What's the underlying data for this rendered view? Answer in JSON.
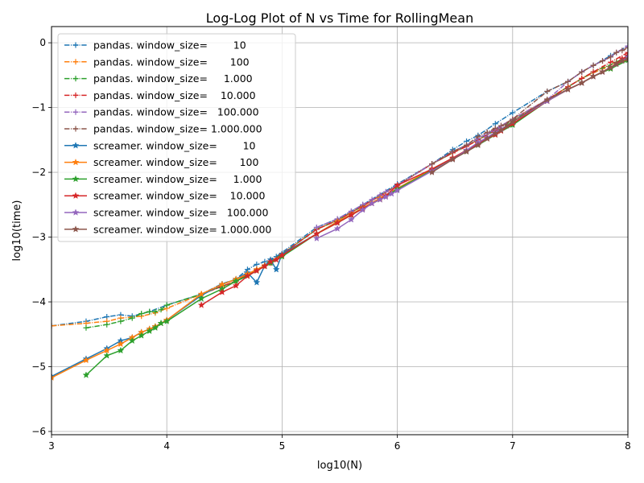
{
  "chart_data": {
    "type": "line",
    "title": "Log-Log Plot of N vs Time for RollingMean",
    "xlabel": "log10(N)",
    "ylabel": "log10(time)",
    "xlim": [
      3,
      8
    ],
    "ylim": [
      -6.05,
      0.25
    ],
    "xticks": [
      "3",
      "4",
      "5",
      "6",
      "7",
      "8"
    ],
    "yticks": [
      "0",
      "−1",
      "−2",
      "−3",
      "−4",
      "−5",
      "−6"
    ],
    "grid": true,
    "legend_position": "upper left",
    "series": [
      {
        "name": "pandas. window_size=        10",
        "color": "#1f77b4",
        "style": "dashdot",
        "marker": "plus",
        "x": [
          3.0,
          3.3,
          3.48,
          3.6,
          3.7,
          3.85,
          4.0,
          4.3,
          4.48,
          4.6,
          4.7,
          4.78,
          4.85,
          4.95,
          5.3,
          5.48,
          5.7,
          6.0,
          6.3,
          6.48,
          6.6,
          6.7,
          6.85,
          7.0,
          7.3,
          7.48,
          7.6,
          7.7,
          7.85,
          8.0
        ],
        "y": [
          -4.37,
          -4.3,
          -4.23,
          -4.2,
          -4.22,
          -4.15,
          -4.05,
          -3.88,
          -3.72,
          -3.65,
          -3.5,
          -3.42,
          -3.38,
          -3.3,
          -2.85,
          -2.72,
          -2.5,
          -2.18,
          -1.87,
          -1.65,
          -1.52,
          -1.43,
          -1.25,
          -1.08,
          -0.75,
          -0.6,
          -0.45,
          -0.35,
          -0.2,
          -0.05
        ]
      },
      {
        "name": "pandas. window_size=       100",
        "color": "#ff7f0e",
        "style": "dashdot",
        "marker": "plus",
        "x": [
          3.0,
          3.3,
          3.48,
          3.6,
          3.78,
          3.9,
          4.0,
          4.3,
          4.48,
          4.6,
          4.7,
          4.85,
          5.0,
          5.3,
          5.48,
          5.7,
          6.0,
          6.3,
          6.48,
          6.7,
          6.85,
          7.0,
          7.3,
          7.48,
          7.6,
          7.78,
          7.9,
          8.0
        ],
        "y": [
          -4.37,
          -4.33,
          -4.3,
          -4.25,
          -4.22,
          -4.17,
          -4.1,
          -3.88,
          -3.76,
          -3.68,
          -3.58,
          -3.44,
          -3.26,
          -2.88,
          -2.74,
          -2.52,
          -2.2,
          -1.87,
          -1.7,
          -1.5,
          -1.35,
          -1.18,
          -0.88,
          -0.68,
          -0.55,
          -0.4,
          -0.3,
          -0.2
        ]
      },
      {
        "name": "pandas. window_size=     1.000",
        "color": "#2ca02c",
        "style": "dashdot",
        "marker": "plus",
        "x": [
          3.3,
          3.48,
          3.6,
          3.7,
          3.78,
          3.85,
          3.9,
          3.95,
          4.0,
          4.3,
          4.48,
          4.6,
          4.7,
          4.85,
          5.0,
          5.3,
          5.48,
          5.7,
          6.0,
          6.3,
          6.48,
          6.7,
          6.85,
          7.0,
          7.3,
          7.48,
          7.7,
          7.9,
          8.0
        ],
        "y": [
          -4.4,
          -4.35,
          -4.3,
          -4.25,
          -4.18,
          -4.15,
          -4.15,
          -4.12,
          -4.05,
          -3.88,
          -3.76,
          -3.68,
          -3.58,
          -3.44,
          -3.26,
          -2.88,
          -2.74,
          -2.52,
          -2.2,
          -1.87,
          -1.7,
          -1.5,
          -1.35,
          -1.2,
          -0.88,
          -0.68,
          -0.45,
          -0.3,
          -0.2
        ]
      },
      {
        "name": "pandas. window_size=    10.000",
        "color": "#d62728",
        "style": "dashdot",
        "marker": "plus",
        "x": [
          4.3,
          4.48,
          4.6,
          4.7,
          4.78,
          4.85,
          4.9,
          5.0,
          5.3,
          5.48,
          5.6,
          5.7,
          5.85,
          6.0,
          6.3,
          6.48,
          6.6,
          6.7,
          6.85,
          7.0,
          7.3,
          7.48,
          7.6,
          7.7,
          7.85,
          8.0
        ],
        "y": [
          -3.88,
          -3.76,
          -3.68,
          -3.58,
          -3.5,
          -3.44,
          -3.4,
          -3.26,
          -2.88,
          -2.74,
          -2.62,
          -2.52,
          -2.36,
          -2.2,
          -1.87,
          -1.7,
          -1.6,
          -1.5,
          -1.35,
          -1.18,
          -0.88,
          -0.68,
          -0.55,
          -0.45,
          -0.3,
          -0.15
        ]
      },
      {
        "name": "pandas. window_size=   100.000",
        "color": "#9467bd",
        "style": "dashdot",
        "marker": "plus",
        "x": [
          5.3,
          5.48,
          5.6,
          5.7,
          5.78,
          5.85,
          5.9,
          6.0,
          6.3,
          6.48,
          6.6,
          6.7,
          6.78,
          6.85,
          6.9,
          7.0,
          7.3,
          7.48,
          7.6,
          7.7,
          7.78,
          7.85,
          7.9,
          8.0
        ],
        "y": [
          -2.85,
          -2.72,
          -2.6,
          -2.5,
          -2.42,
          -2.35,
          -2.3,
          -2.2,
          -1.87,
          -1.68,
          -1.58,
          -1.48,
          -1.4,
          -1.33,
          -1.28,
          -1.18,
          -0.88,
          -0.6,
          -0.45,
          -0.35,
          -0.28,
          -0.22,
          -0.15,
          -0.05
        ]
      },
      {
        "name": "pandas. window_size= 1.000.000",
        "color": "#8c564b",
        "style": "dashdot",
        "marker": "plus",
        "x": [
          6.3,
          6.48,
          6.6,
          6.7,
          6.78,
          6.85,
          6.9,
          7.0,
          7.3,
          7.48,
          7.6,
          7.7,
          7.78,
          7.85,
          7.9,
          7.95,
          8.0
        ],
        "y": [
          -1.87,
          -1.68,
          -1.58,
          -1.45,
          -1.38,
          -1.32,
          -1.28,
          -1.18,
          -0.75,
          -0.6,
          -0.45,
          -0.35,
          -0.28,
          -0.22,
          -0.15,
          -0.12,
          -0.08
        ]
      },
      {
        "name": "screamer. window_size=        10",
        "color": "#1f77b4",
        "style": "solid",
        "marker": "star",
        "x": [
          3.0,
          3.3,
          3.48,
          3.6,
          3.7,
          3.78,
          3.85,
          3.9,
          3.95,
          4.0,
          4.3,
          4.48,
          4.6,
          4.7,
          4.78,
          4.85,
          4.9,
          4.95,
          5.0,
          5.3,
          5.48,
          5.6,
          5.7,
          5.85,
          6.0,
          6.3,
          6.48,
          6.6,
          6.7,
          6.85,
          7.0,
          7.3,
          7.48,
          7.6,
          7.7,
          7.85,
          8.0
        ],
        "y": [
          -5.15,
          -4.88,
          -4.72,
          -4.6,
          -4.55,
          -4.47,
          -4.42,
          -4.38,
          -4.33,
          -4.28,
          -3.9,
          -3.73,
          -3.65,
          -3.55,
          -3.7,
          -3.44,
          -3.35,
          -3.5,
          -3.26,
          -2.95,
          -2.76,
          -2.65,
          -2.55,
          -2.4,
          -2.25,
          -1.95,
          -1.78,
          -1.66,
          -1.55,
          -1.4,
          -1.25,
          -0.9,
          -0.72,
          -0.62,
          -0.52,
          -0.4,
          -0.25
        ]
      },
      {
        "name": "screamer. window_size=       100",
        "color": "#ff7f0e",
        "style": "solid",
        "marker": "star",
        "x": [
          3.0,
          3.3,
          3.48,
          3.6,
          3.7,
          3.78,
          3.85,
          3.9,
          3.95,
          4.0,
          4.3,
          4.48,
          4.6,
          4.7,
          4.78,
          4.85,
          4.9,
          5.0,
          5.3,
          5.48,
          5.6,
          5.7,
          5.85,
          6.0,
          6.3,
          6.48,
          6.6,
          6.7,
          6.85,
          7.0,
          7.3,
          7.48,
          7.6,
          7.7,
          7.85,
          8.0
        ],
        "y": [
          -5.17,
          -4.9,
          -4.75,
          -4.65,
          -4.55,
          -4.47,
          -4.42,
          -4.38,
          -4.33,
          -4.28,
          -3.88,
          -3.73,
          -3.65,
          -3.57,
          -3.5,
          -3.44,
          -3.4,
          -3.28,
          -2.95,
          -2.76,
          -2.65,
          -2.55,
          -2.4,
          -2.25,
          -1.95,
          -1.78,
          -1.66,
          -1.55,
          -1.4,
          -1.25,
          -0.9,
          -0.72,
          -0.62,
          -0.52,
          -0.4,
          -0.25
        ]
      },
      {
        "name": "screamer. window_size=     1.000",
        "color": "#2ca02c",
        "style": "solid",
        "marker": "star",
        "x": [
          3.3,
          3.48,
          3.6,
          3.7,
          3.78,
          3.85,
          3.9,
          3.95,
          4.0,
          4.3,
          4.48,
          4.6,
          4.7,
          4.78,
          4.85,
          4.9,
          5.0,
          5.3,
          5.48,
          5.6,
          5.7,
          5.85,
          6.0,
          6.3,
          6.48,
          6.6,
          6.7,
          6.85,
          7.0,
          7.3,
          7.48,
          7.6,
          7.7,
          7.85,
          8.0
        ],
        "y": [
          -5.13,
          -4.83,
          -4.75,
          -4.6,
          -4.52,
          -4.45,
          -4.4,
          -4.33,
          -4.3,
          -3.95,
          -3.8,
          -3.68,
          -3.6,
          -3.52,
          -3.45,
          -3.4,
          -3.3,
          -2.95,
          -2.78,
          -2.66,
          -2.56,
          -2.42,
          -2.26,
          -1.97,
          -1.8,
          -1.68,
          -1.58,
          -1.42,
          -1.27,
          -0.9,
          -0.72,
          -0.62,
          -0.52,
          -0.4,
          -0.27
        ]
      },
      {
        "name": "screamer. window_size=    10.000",
        "color": "#d62728",
        "style": "solid",
        "marker": "star",
        "x": [
          4.3,
          4.48,
          4.6,
          4.7,
          4.78,
          4.85,
          4.9,
          4.95,
          5.0,
          5.3,
          5.48,
          5.6,
          5.7,
          5.78,
          5.85,
          5.9,
          6.0,
          6.3,
          6.48,
          6.6,
          6.7,
          6.78,
          6.85,
          6.9,
          7.0,
          7.3,
          7.48,
          7.6,
          7.7,
          7.78,
          7.85,
          7.9,
          7.95,
          8.0
        ],
        "y": [
          -4.05,
          -3.85,
          -3.75,
          -3.6,
          -3.52,
          -3.45,
          -3.38,
          -3.35,
          -3.28,
          -2.95,
          -2.78,
          -2.66,
          -2.56,
          -2.48,
          -2.42,
          -2.36,
          -2.2,
          -1.95,
          -1.78,
          -1.66,
          -1.56,
          -1.48,
          -1.42,
          -1.36,
          -1.25,
          -0.9,
          -0.72,
          -0.62,
          -0.52,
          -0.45,
          -0.38,
          -0.32,
          -0.25,
          -0.2
        ]
      },
      {
        "name": "screamer. window_size=   100.000",
        "color": "#9467bd",
        "style": "solid",
        "marker": "star",
        "x": [
          5.3,
          5.48,
          5.6,
          5.7,
          5.78,
          5.85,
          5.9,
          5.95,
          6.0,
          6.3,
          6.48,
          6.6,
          6.7,
          6.78,
          6.85,
          6.9,
          6.95,
          7.0,
          7.3,
          7.48,
          7.6,
          7.7,
          7.78,
          7.85,
          7.9,
          7.95,
          8.0
        ],
        "y": [
          -3.02,
          -2.87,
          -2.73,
          -2.58,
          -2.48,
          -2.42,
          -2.38,
          -2.33,
          -2.28,
          -1.98,
          -1.8,
          -1.66,
          -1.54,
          -1.46,
          -1.38,
          -1.33,
          -1.28,
          -1.22,
          -0.9,
          -0.72,
          -0.62,
          -0.52,
          -0.45,
          -0.38,
          -0.33,
          -0.28,
          -0.22
        ]
      },
      {
        "name": "screamer. window_size= 1.000.000",
        "color": "#8c564b",
        "style": "solid",
        "marker": "star",
        "x": [
          6.3,
          6.48,
          6.6,
          6.7,
          6.78,
          6.85,
          6.9,
          6.95,
          7.0,
          7.3,
          7.48,
          7.6,
          7.7,
          7.78,
          7.85,
          7.9,
          7.95,
          8.0
        ],
        "y": [
          -2.0,
          -1.8,
          -1.68,
          -1.58,
          -1.48,
          -1.4,
          -1.35,
          -1.28,
          -1.22,
          -0.88,
          -0.72,
          -0.62,
          -0.52,
          -0.45,
          -0.38,
          -0.33,
          -0.28,
          -0.25
        ]
      }
    ]
  }
}
